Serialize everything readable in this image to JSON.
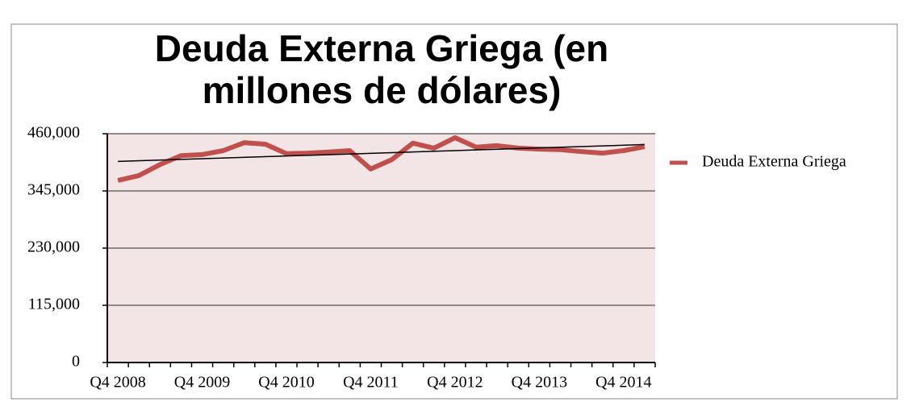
{
  "chart_data": {
    "type": "line",
    "title": "Deuda Externa Griega (en millones de dólares)",
    "categories": [
      "Q4 2008",
      null,
      null,
      null,
      "Q4 2009",
      null,
      null,
      null,
      "Q4 2010",
      null,
      null,
      null,
      "Q4 2011",
      null,
      null,
      null,
      "Q4 2012",
      null,
      null,
      null,
      "Q4 2013",
      null,
      null,
      null,
      "Q4 2014",
      null
    ],
    "series": [
      {
        "name": "Deuda Externa Griega",
        "color": "#c0504d",
        "values": [
          366000,
          376000,
          398000,
          416000,
          418000,
          426000,
          442000,
          439000,
          420000,
          421000,
          423000,
          426000,
          389000,
          408000,
          441000,
          431000,
          452000,
          433000,
          436000,
          431000,
          429000,
          428000,
          424000,
          421000,
          426000,
          434000
        ]
      }
    ],
    "ylim": [
      0,
      460000
    ],
    "yticks": [
      0,
      {
        "value": 115000,
        "label": "115,000"
      },
      {
        "value": 230000,
        "label": "230,000"
      },
      {
        "value": 345000,
        "label": "345,000"
      },
      {
        "value": 460000,
        "label": "460,000"
      }
    ],
    "grid": true,
    "trendline": true,
    "legend": "right"
  }
}
